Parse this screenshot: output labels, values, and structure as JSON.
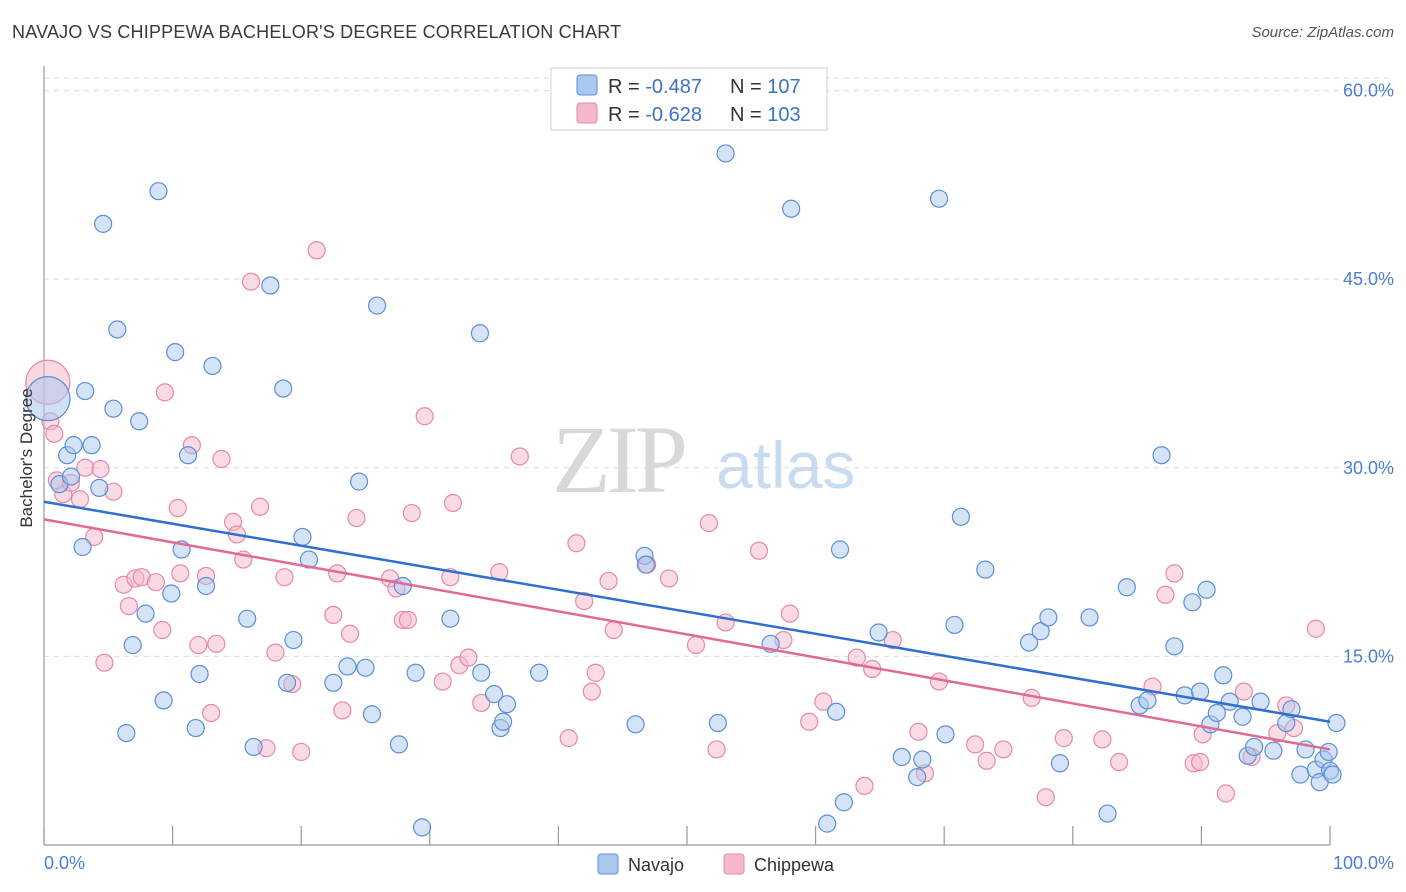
{
  "title": "NAVAJO VS CHIPPEWA BACHELOR'S DEGREE CORRELATION CHART",
  "source": "Source: ZipAtlas.com",
  "watermark": {
    "zip": "ZIP",
    "atlas": "atlas"
  },
  "colors": {
    "navajo_fill": "#a9c8ee",
    "navajo_stroke": "#5b8fd6",
    "navajo_line": "#2f6fd0",
    "chippewa_fill": "#f5b8cb",
    "chippewa_stroke": "#e888a8",
    "chippewa_line": "#e06a94",
    "tick_label": "#4a7fd0",
    "grid": "#d9d9d9"
  },
  "legend": {
    "rows": [
      {
        "r_label": "R = ",
        "r_value": "-0.487",
        "n_label": "N = ",
        "n_value": "107"
      },
      {
        "r_label": "R = ",
        "r_value": "-0.628",
        "n_label": "N = ",
        "n_value": "103"
      }
    ]
  },
  "bottom_legend": {
    "navajo": "Navajo",
    "chippewa": "Chippewa"
  },
  "chart_data": {
    "type": "scatter",
    "title": "NAVAJO VS CHIPPEWA BACHELOR'S DEGREE CORRELATION CHART",
    "xlabel": "",
    "ylabel": "Bachelor's Degree",
    "xlim": [
      0,
      100
    ],
    "ylim": [
      0,
      61
    ],
    "x_tick_labels": [
      "0.0%",
      "100.0%"
    ],
    "y_ticks": [
      15,
      30,
      45,
      60
    ],
    "y_tick_labels": [
      "15.0%",
      "30.0%",
      "45.0%",
      "60.0%"
    ],
    "grid": "horizontal dashed",
    "legend_position": "top-center",
    "series": [
      {
        "name": "Navajo",
        "r": -0.487,
        "n": 107,
        "trend": {
          "x": [
            0,
            100
          ],
          "y": [
            27.3,
            9.8
          ]
        },
        "points": [
          [
            0.3,
            35.5
          ],
          [
            1.2,
            28.7
          ],
          [
            1.8,
            31.0
          ],
          [
            2.1,
            29.3
          ],
          [
            2.3,
            31.8
          ],
          [
            3.0,
            23.7
          ],
          [
            3.2,
            36.1
          ],
          [
            3.7,
            31.8
          ],
          [
            4.3,
            28.4
          ],
          [
            4.6,
            49.4
          ],
          [
            5.4,
            34.7
          ],
          [
            5.7,
            41.0
          ],
          [
            6.4,
            8.9
          ],
          [
            6.9,
            15.9
          ],
          [
            7.4,
            33.7
          ],
          [
            7.9,
            18.4
          ],
          [
            8.9,
            52.0
          ],
          [
            9.3,
            11.5
          ],
          [
            9.9,
            20.0
          ],
          [
            10.2,
            39.2
          ],
          [
            10.7,
            23.5
          ],
          [
            11.2,
            31.0
          ],
          [
            11.8,
            9.3
          ],
          [
            12.1,
            13.6
          ],
          [
            12.6,
            20.6
          ],
          [
            13.1,
            38.1
          ],
          [
            15.8,
            18.0
          ],
          [
            16.3,
            7.8
          ],
          [
            17.6,
            44.5
          ],
          [
            18.6,
            36.3
          ],
          [
            18.9,
            12.9
          ],
          [
            19.4,
            16.3
          ],
          [
            20.1,
            24.5
          ],
          [
            20.6,
            22.7
          ],
          [
            22.5,
            12.9
          ],
          [
            23.6,
            14.2
          ],
          [
            24.5,
            28.9
          ],
          [
            25.0,
            14.1
          ],
          [
            25.5,
            10.4
          ],
          [
            25.9,
            42.9
          ],
          [
            27.6,
            8.0
          ],
          [
            27.9,
            20.6
          ],
          [
            28.9,
            13.7
          ],
          [
            29.4,
            1.4
          ],
          [
            31.6,
            18.0
          ],
          [
            33.9,
            40.7
          ],
          [
            34.0,
            13.7
          ],
          [
            35.0,
            12.0
          ],
          [
            35.5,
            9.3
          ],
          [
            35.7,
            9.8
          ],
          [
            36.0,
            11.2
          ],
          [
            38.5,
            13.7
          ],
          [
            46.0,
            9.6
          ],
          [
            46.7,
            23.0
          ],
          [
            46.8,
            22.3
          ],
          [
            52.4,
            9.7
          ],
          [
            53.0,
            55.0
          ],
          [
            56.5,
            16.0
          ],
          [
            58.1,
            50.6
          ],
          [
            60.9,
            1.7
          ],
          [
            61.6,
            10.6
          ],
          [
            61.9,
            23.5
          ],
          [
            62.2,
            3.4
          ],
          [
            64.9,
            16.9
          ],
          [
            66.7,
            7.0
          ],
          [
            67.9,
            5.4
          ],
          [
            68.3,
            6.8
          ],
          [
            69.6,
            51.4
          ],
          [
            70.1,
            8.8
          ],
          [
            70.8,
            17.5
          ],
          [
            71.3,
            26.1
          ],
          [
            73.2,
            21.9
          ],
          [
            76.6,
            16.1
          ],
          [
            77.5,
            17.0
          ],
          [
            78.1,
            18.1
          ],
          [
            79.0,
            6.5
          ],
          [
            81.3,
            18.1
          ],
          [
            82.7,
            2.5
          ],
          [
            84.2,
            20.5
          ],
          [
            85.2,
            11.1
          ],
          [
            85.8,
            11.5
          ],
          [
            86.9,
            31.0
          ],
          [
            87.9,
            15.8
          ],
          [
            88.7,
            11.9
          ],
          [
            89.3,
            19.3
          ],
          [
            89.9,
            12.2
          ],
          [
            90.4,
            20.3
          ],
          [
            90.7,
            9.6
          ],
          [
            91.2,
            10.5
          ],
          [
            91.7,
            13.5
          ],
          [
            92.2,
            11.4
          ],
          [
            93.2,
            10.2
          ],
          [
            93.6,
            7.1
          ],
          [
            94.1,
            7.8
          ],
          [
            94.6,
            11.4
          ],
          [
            95.6,
            7.5
          ],
          [
            96.6,
            9.7
          ],
          [
            97.0,
            10.8
          ],
          [
            97.7,
            5.6
          ],
          [
            98.1,
            7.6
          ],
          [
            98.9,
            6.0
          ],
          [
            99.2,
            5.0
          ],
          [
            99.5,
            6.8
          ],
          [
            99.9,
            7.4
          ],
          [
            100.0,
            5.9
          ],
          [
            100.2,
            5.6
          ],
          [
            100.5,
            9.7
          ]
        ]
      },
      {
        "name": "Chippewa",
        "r": -0.628,
        "n": 103,
        "trend": {
          "x": [
            0,
            100
          ],
          "y": [
            25.9,
            7.6
          ]
        },
        "points": [
          [
            0.3,
            36.8
          ],
          [
            0.5,
            33.7
          ],
          [
            0.8,
            32.7
          ],
          [
            1.0,
            29.0
          ],
          [
            1.5,
            27.9
          ],
          [
            2.1,
            28.8
          ],
          [
            2.8,
            27.5
          ],
          [
            3.2,
            30.0
          ],
          [
            3.9,
            24.5
          ],
          [
            4.4,
            29.9
          ],
          [
            4.7,
            14.5
          ],
          [
            5.4,
            28.1
          ],
          [
            6.2,
            20.7
          ],
          [
            6.6,
            19.0
          ],
          [
            7.1,
            21.2
          ],
          [
            7.6,
            21.3
          ],
          [
            8.7,
            20.9
          ],
          [
            9.2,
            17.1
          ],
          [
            9.4,
            36.0
          ],
          [
            10.4,
            26.8
          ],
          [
            10.6,
            21.6
          ],
          [
            11.5,
            31.8
          ],
          [
            12.0,
            15.9
          ],
          [
            12.6,
            21.4
          ],
          [
            13.0,
            10.5
          ],
          [
            13.4,
            16.0
          ],
          [
            13.8,
            30.7
          ],
          [
            14.7,
            25.7
          ],
          [
            15.0,
            24.7
          ],
          [
            15.5,
            22.7
          ],
          [
            16.1,
            44.8
          ],
          [
            16.8,
            26.9
          ],
          [
            17.3,
            7.7
          ],
          [
            18.0,
            15.3
          ],
          [
            18.7,
            21.3
          ],
          [
            19.3,
            12.8
          ],
          [
            20.0,
            7.4
          ],
          [
            21.2,
            47.3
          ],
          [
            22.5,
            18.3
          ],
          [
            22.8,
            21.6
          ],
          [
            23.2,
            10.7
          ],
          [
            23.8,
            16.8
          ],
          [
            24.3,
            26.0
          ],
          [
            26.9,
            21.2
          ],
          [
            27.4,
            20.4
          ],
          [
            27.9,
            17.9
          ],
          [
            28.3,
            17.9
          ],
          [
            28.6,
            26.4
          ],
          [
            29.6,
            34.1
          ],
          [
            31.0,
            13.0
          ],
          [
            31.6,
            21.3
          ],
          [
            31.8,
            27.2
          ],
          [
            32.3,
            14.3
          ],
          [
            33.0,
            14.9
          ],
          [
            34.0,
            11.3
          ],
          [
            35.4,
            21.7
          ],
          [
            37.0,
            30.9
          ],
          [
            40.8,
            8.5
          ],
          [
            41.4,
            24.0
          ],
          [
            42.0,
            19.4
          ],
          [
            42.6,
            12.2
          ],
          [
            42.9,
            13.7
          ],
          [
            43.9,
            21.0
          ],
          [
            44.3,
            17.1
          ],
          [
            46.9,
            22.3
          ],
          [
            48.6,
            21.2
          ],
          [
            50.7,
            15.9
          ],
          [
            51.7,
            25.6
          ],
          [
            52.3,
            7.6
          ],
          [
            53.0,
            17.7
          ],
          [
            55.6,
            23.4
          ],
          [
            57.5,
            16.3
          ],
          [
            58.0,
            18.4
          ],
          [
            59.5,
            9.8
          ],
          [
            60.6,
            11.4
          ],
          [
            63.2,
            14.9
          ],
          [
            63.8,
            4.7
          ],
          [
            64.4,
            14.0
          ],
          [
            66.0,
            16.3
          ],
          [
            68.0,
            9.0
          ],
          [
            68.5,
            5.7
          ],
          [
            69.6,
            13.0
          ],
          [
            72.4,
            8.0
          ],
          [
            73.3,
            6.7
          ],
          [
            74.6,
            7.6
          ],
          [
            76.8,
            11.7
          ],
          [
            77.9,
            3.8
          ],
          [
            79.3,
            8.5
          ],
          [
            82.3,
            8.4
          ],
          [
            83.6,
            6.6
          ],
          [
            86.2,
            12.6
          ],
          [
            87.2,
            19.9
          ],
          [
            87.9,
            21.6
          ],
          [
            89.4,
            6.5
          ],
          [
            89.9,
            6.6
          ],
          [
            90.1,
            8.8
          ],
          [
            91.9,
            4.1
          ],
          [
            93.3,
            12.2
          ],
          [
            93.9,
            7.0
          ],
          [
            95.9,
            8.9
          ],
          [
            96.6,
            11.1
          ],
          [
            97.2,
            9.3
          ],
          [
            98.9,
            17.2
          ]
        ]
      }
    ]
  }
}
